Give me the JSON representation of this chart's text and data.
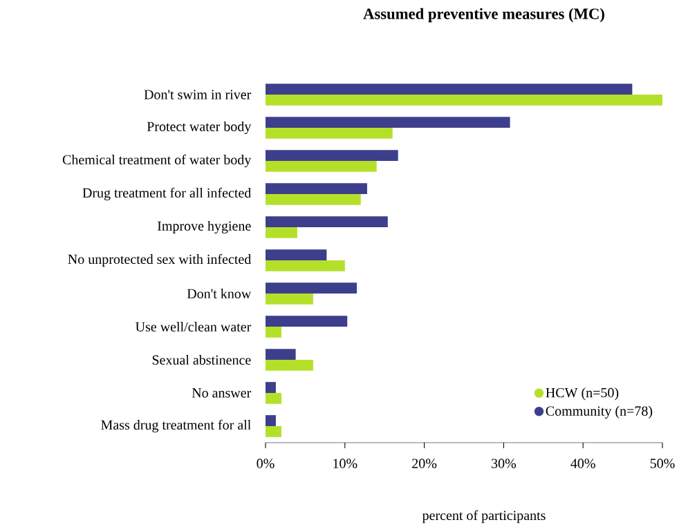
{
  "chart_data": {
    "type": "bar",
    "orientation": "horizontal",
    "title": "Assumed preventive measures (MC)",
    "xlabel": "percent of participants",
    "categories": [
      "Don't swim in river",
      "Protect water body",
      "Chemical treatment of water body",
      "Drug treatment for all infected",
      "Improve hygiene",
      "No unprotected sex with infected",
      "Don't know",
      "Use well/clean water",
      "Sexual abstinence",
      "No answer",
      "Mass drug treatment for all"
    ],
    "series": [
      {
        "name": "HCW (n=50)",
        "color": "#b5e02a",
        "values": [
          50,
          16,
          14,
          12,
          4,
          10,
          6,
          2,
          6,
          2,
          2
        ]
      },
      {
        "name": "Community (n=78)",
        "color": "#3d3f8c",
        "values": [
          46.2,
          30.8,
          16.7,
          12.8,
          15.4,
          7.7,
          11.5,
          10.3,
          3.8,
          1.3,
          1.3
        ]
      }
    ],
    "xlim": [
      0,
      50
    ],
    "xticks": [
      {
        "value": 0,
        "label": "0%"
      },
      {
        "value": 10,
        "label": "10%"
      },
      {
        "value": 20,
        "label": "20%"
      },
      {
        "value": 30,
        "label": "30%"
      },
      {
        "value": 40,
        "label": "40%"
      },
      {
        "value": 50,
        "label": "50%"
      }
    ],
    "legend": "bottom right",
    "grid": false
  }
}
